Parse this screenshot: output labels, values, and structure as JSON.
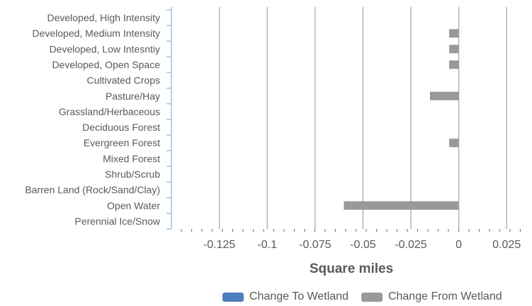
{
  "chart_data": {
    "type": "bar",
    "orientation": "horizontal",
    "categories": [
      "Developed, High Intensity",
      "Developed, Medium Intensity",
      "Developed, Low Intesntiy",
      "Developed, Open Space",
      "Cultivated Crops",
      "Pasture/Hay",
      "Grassland/Herbaceous",
      "Deciduous Forest",
      "Evergreen Forest",
      "Mixed Forest",
      "Shrub/Scrub",
      "Barren Land (Rock/Sand/Clay)",
      "Open Water",
      "Perennial Ice/Snow"
    ],
    "series": [
      {
        "name": "Change To Wetland",
        "color": "#4e7fbd",
        "values": [
          0,
          0,
          0,
          0,
          0,
          0,
          0,
          0,
          0,
          0,
          0,
          0,
          0,
          0
        ]
      },
      {
        "name": "Change From Wetland",
        "color": "#999999",
        "values": [
          0,
          -0.005,
          -0.005,
          -0.005,
          0,
          -0.015,
          0,
          0,
          -0.005,
          0,
          0,
          0,
          -0.06,
          0
        ]
      }
    ],
    "xlabel": "Square miles",
    "xlim": [
      -0.15,
      0.0375
    ],
    "xticks": [
      -0.125,
      -0.1,
      -0.075,
      -0.05,
      -0.025,
      0,
      0.025
    ],
    "xtick_labels": [
      "-0.125",
      "-0.1",
      "-0.075",
      "-0.05",
      "-0.025",
      "0",
      "0.025"
    ],
    "gridlines": true,
    "legend": "bottom-right"
  }
}
